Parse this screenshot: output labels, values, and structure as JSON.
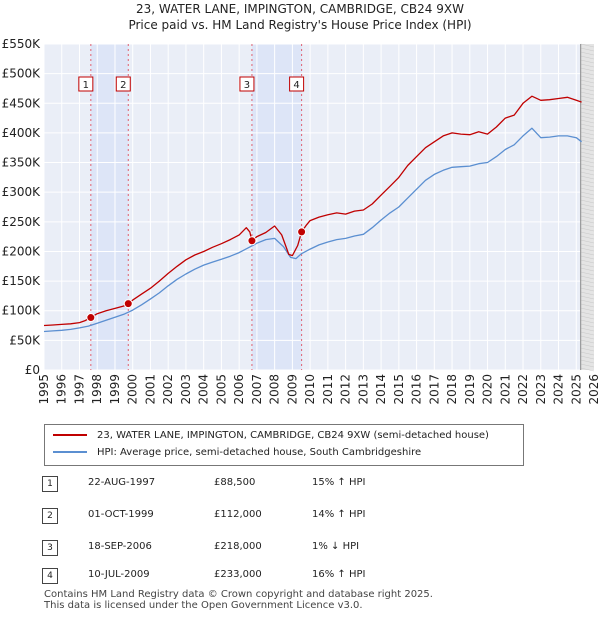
{
  "title_line1": "23, WATER LANE, IMPINGTON, CAMBRIDGE, CB24 9XW",
  "title_line2": "Price paid vs. HM Land Registry's House Price Index (HPI)",
  "chart_data": {
    "type": "line",
    "title": "23, WATER LANE, IMPINGTON, CAMBRIDGE, CB24 9XW — Price paid vs. HM Land Registry's House Price Index (HPI)",
    "xlim": [
      1995,
      2026
    ],
    "ylim": [
      0,
      550000
    ],
    "x_ticks": [
      1995,
      1996,
      1997,
      1998,
      1999,
      2000,
      2001,
      2002,
      2003,
      2004,
      2005,
      2006,
      2007,
      2008,
      2009,
      2010,
      2011,
      2012,
      2013,
      2014,
      2015,
      2016,
      2017,
      2018,
      2019,
      2020,
      2021,
      2022,
      2023,
      2024,
      2025,
      2026
    ],
    "y_ticks": [
      {
        "value": 0,
        "label": "£0"
      },
      {
        "value": 50000,
        "label": "£50K"
      },
      {
        "value": 100000,
        "label": "£100K"
      },
      {
        "value": 150000,
        "label": "£150K"
      },
      {
        "value": 200000,
        "label": "£200K"
      },
      {
        "value": 250000,
        "label": "£250K"
      },
      {
        "value": 300000,
        "label": "£300K"
      },
      {
        "value": 350000,
        "label": "£350K"
      },
      {
        "value": 400000,
        "label": "£400K"
      },
      {
        "value": 450000,
        "label": "£450K"
      },
      {
        "value": 500000,
        "label": "£500K"
      },
      {
        "value": 550000,
        "label": "£550K"
      }
    ],
    "series": [
      {
        "name": "23, WATER LANE, IMPINGTON, CAMBRIDGE, CB24 9XW (semi-detached house)",
        "color": "#c00000",
        "x": [
          1995.0,
          1995.5,
          1996.0,
          1996.5,
          1997.0,
          1997.3,
          1997.64,
          1998.0,
          1998.5,
          1999.0,
          1999.5,
          1999.75,
          2000.0,
          2000.5,
          2001.0,
          2001.5,
          2002.0,
          2002.5,
          2003.0,
          2003.5,
          2004.0,
          2004.5,
          2005.0,
          2005.5,
          2006.0,
          2006.4,
          2006.6,
          2006.72,
          2007.0,
          2007.5,
          2008.0,
          2008.4,
          2008.8,
          2009.0,
          2009.3,
          2009.52,
          2009.8,
          2010.0,
          2010.5,
          2011.0,
          2011.5,
          2012.0,
          2012.5,
          2013.0,
          2013.5,
          2014.0,
          2014.5,
          2015.0,
          2015.5,
          2016.0,
          2016.5,
          2017.0,
          2017.5,
          2018.0,
          2018.5,
          2019.0,
          2019.5,
          2020.0,
          2020.5,
          2021.0,
          2021.5,
          2022.0,
          2022.5,
          2023.0,
          2023.5,
          2024.0,
          2024.5,
          2025.0,
          2025.3
        ],
        "values": [
          75000,
          76000,
          77000,
          78000,
          80000,
          83000,
          88500,
          95000,
          100000,
          104000,
          108000,
          112000,
          118000,
          128000,
          138000,
          150000,
          163000,
          175000,
          186000,
          194000,
          200000,
          207000,
          213000,
          220000,
          228000,
          240000,
          233000,
          218000,
          225000,
          232000,
          243000,
          228000,
          195000,
          193000,
          210000,
          233000,
          245000,
          252000,
          258000,
          262000,
          265000,
          263000,
          268000,
          270000,
          280000,
          295000,
          310000,
          325000,
          345000,
          360000,
          375000,
          385000,
          395000,
          400000,
          398000,
          397000,
          402000,
          398000,
          410000,
          425000,
          430000,
          450000,
          462000,
          455000,
          456000,
          458000,
          460000,
          455000,
          452000
        ]
      },
      {
        "name": "HPI: Average price, semi-detached house, South Cambridgeshire",
        "color": "#5b8fd1",
        "x": [
          1995.0,
          1995.5,
          1996.0,
          1996.5,
          1997.0,
          1997.5,
          1998.0,
          1998.5,
          1999.0,
          1999.5,
          2000.0,
          2000.5,
          2001.0,
          2001.5,
          2002.0,
          2002.5,
          2003.0,
          2003.5,
          2004.0,
          2004.5,
          2005.0,
          2005.5,
          2006.0,
          2006.5,
          2007.0,
          2007.5,
          2008.0,
          2008.5,
          2008.9,
          2009.2,
          2009.5,
          2010.0,
          2010.5,
          2011.0,
          2011.5,
          2012.0,
          2012.5,
          2013.0,
          2013.5,
          2014.0,
          2014.5,
          2015.0,
          2015.5,
          2016.0,
          2016.5,
          2017.0,
          2017.5,
          2018.0,
          2018.5,
          2019.0,
          2019.5,
          2020.0,
          2020.5,
          2021.0,
          2021.5,
          2022.0,
          2022.5,
          2023.0,
          2023.5,
          2024.0,
          2024.5,
          2025.0,
          2025.3
        ],
        "values": [
          65000,
          66000,
          67000,
          68500,
          71000,
          74000,
          79000,
          84000,
          89000,
          94000,
          101000,
          110000,
          120000,
          130000,
          142000,
          153000,
          162000,
          170000,
          177000,
          182000,
          187000,
          192000,
          198000,
          206000,
          214000,
          220000,
          222000,
          208000,
          190000,
          188000,
          196000,
          204000,
          211000,
          216000,
          220000,
          222000,
          226000,
          229000,
          240000,
          253000,
          265000,
          275000,
          290000,
          305000,
          320000,
          330000,
          337000,
          342000,
          343000,
          344000,
          348000,
          350000,
          360000,
          372000,
          380000,
          395000,
          408000,
          392000,
          393000,
          395000,
          395000,
          392000,
          385000
        ]
      }
    ],
    "transactions": [
      {
        "n": "1",
        "x": 1997.64,
        "price": 88500
      },
      {
        "n": "2",
        "x": 1999.75,
        "price": 112000
      },
      {
        "n": "3",
        "x": 2006.72,
        "price": 218000
      },
      {
        "n": "4",
        "x": 2009.52,
        "price": 233000
      }
    ],
    "shaded_ranges": [
      [
        1997.64,
        1999.75
      ],
      [
        2006.72,
        2009.52
      ]
    ],
    "future_from": 2025.25
  },
  "legend": {
    "property": "23, WATER LANE, IMPINGTON, CAMBRIDGE, CB24 9XW (semi-detached house)",
    "hpi": "HPI: Average price, semi-detached house, South Cambridgeshire"
  },
  "table": [
    {
      "n": "1",
      "date": "22-AUG-1997",
      "price": "£88,500",
      "hpi": "15% ↑ HPI"
    },
    {
      "n": "2",
      "date": "01-OCT-1999",
      "price": "£112,000",
      "hpi": "14% ↑ HPI"
    },
    {
      "n": "3",
      "date": "18-SEP-2006",
      "price": "£218,000",
      "hpi": "1% ↓ HPI"
    },
    {
      "n": "4",
      "date": "10-JUL-2009",
      "price": "£233,000",
      "hpi": "16% ↑ HPI"
    }
  ],
  "footer_line1": "Contains HM Land Registry data © Crown copyright and database right 2025.",
  "footer_line2": "This data is licensed under the Open Government Licence v3.0."
}
